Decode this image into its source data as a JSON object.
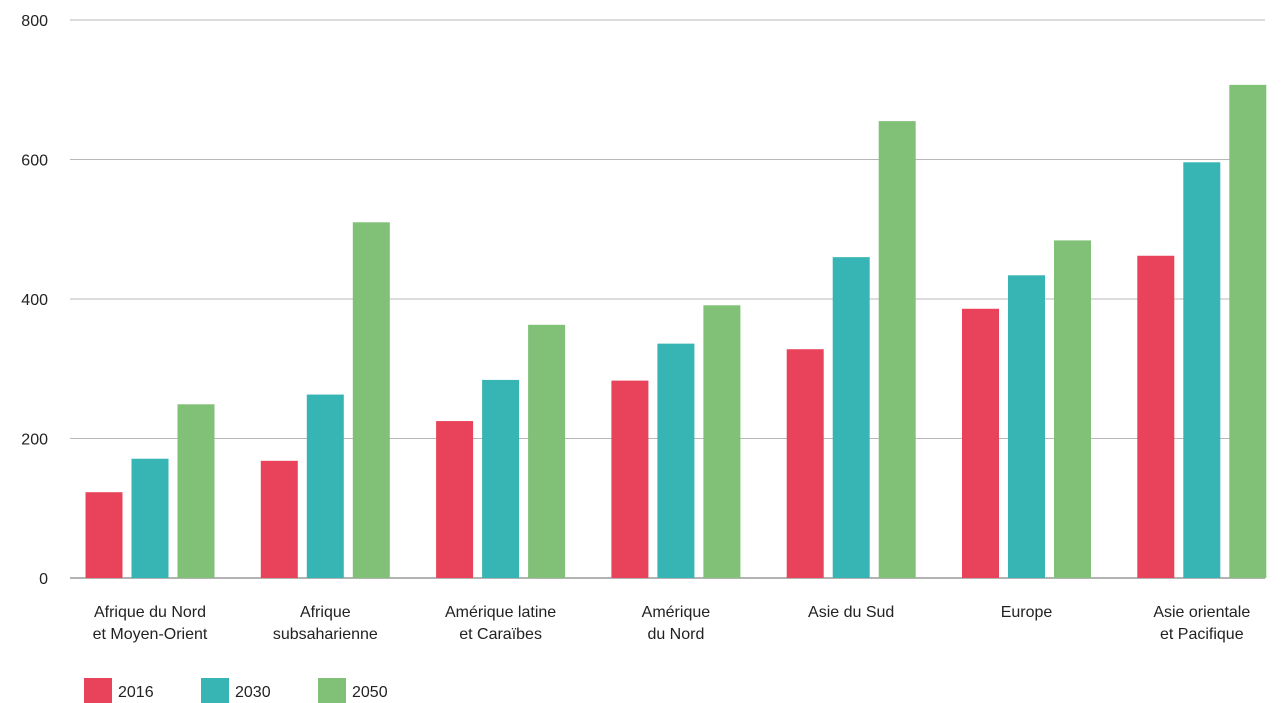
{
  "chart_data": {
    "type": "bar",
    "title": "",
    "xlabel": "",
    "ylabel": "",
    "ylim": [
      0,
      800
    ],
    "yticks": [
      0,
      200,
      400,
      600,
      800
    ],
    "grid": true,
    "legend_position": "bottom-left",
    "categories": [
      [
        "Afrique du Nord",
        "et Moyen-Orient"
      ],
      [
        "Afrique",
        "subsaharienne"
      ],
      [
        "Amérique latine",
        "et Caraïbes"
      ],
      [
        "Amérique",
        "du Nord"
      ],
      [
        "Asie du Sud"
      ],
      [
        "Europe"
      ],
      [
        "Asie orientale",
        "et Pacifique"
      ]
    ],
    "series": [
      {
        "name": "2016",
        "color": "#e8435a",
        "values": [
          123,
          168,
          225,
          283,
          328,
          386,
          462
        ]
      },
      {
        "name": "2030",
        "color": "#37b5b5",
        "values": [
          171,
          263,
          284,
          336,
          460,
          434,
          596
        ]
      },
      {
        "name": "2050",
        "color": "#80c077",
        "values": [
          249,
          510,
          363,
          391,
          655,
          484,
          707
        ]
      }
    ]
  }
}
